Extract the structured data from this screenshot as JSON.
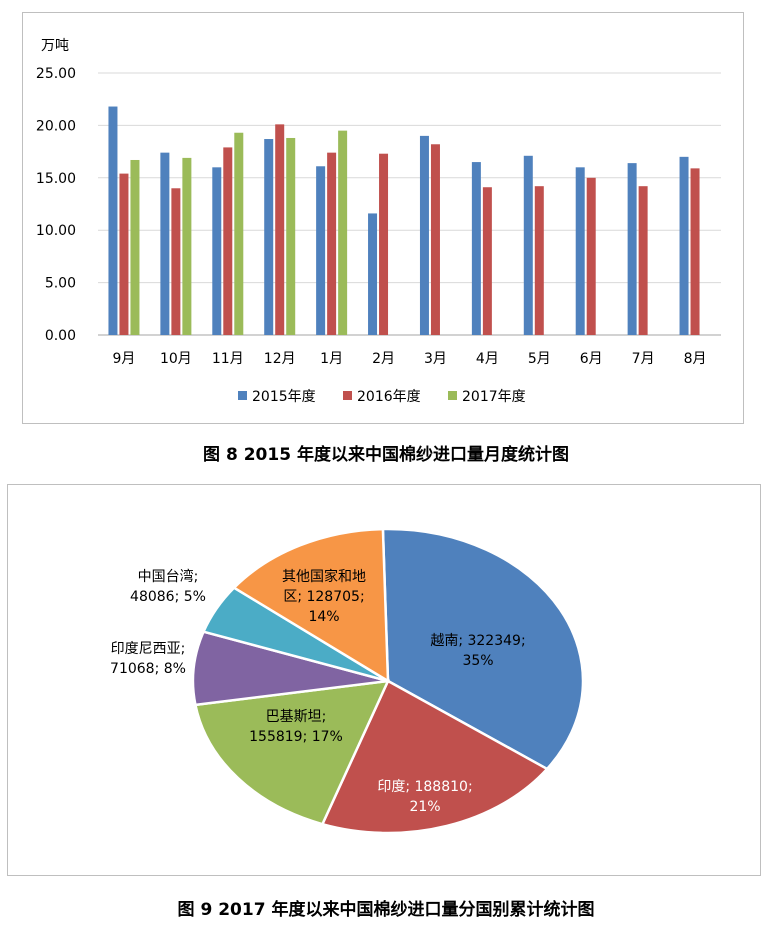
{
  "chart_data": [
    {
      "type": "bar",
      "title": "图 8 2015 年度以来中国棉纱进口量月度统计图",
      "ylabel": "万吨",
      "xlabel": "",
      "ylim": [
        0,
        25
      ],
      "yticks": [
        "0.00",
        "5.00",
        "10.00",
        "15.00",
        "20.00",
        "25.00"
      ],
      "grid": true,
      "legend": "bottom",
      "categories": [
        "9月",
        "10月",
        "11月",
        "12月",
        "1月",
        "2月",
        "3月",
        "4月",
        "5月",
        "6月",
        "7月",
        "8月"
      ],
      "series": [
        {
          "name": "2015年度",
          "color": "#4f81bd",
          "values": [
            21.8,
            17.4,
            16.0,
            18.7,
            16.1,
            11.6,
            19.0,
            16.5,
            17.1,
            16.0,
            16.4,
            17.0
          ]
        },
        {
          "name": "2016年度",
          "color": "#c0504d",
          "values": [
            15.4,
            14.0,
            17.9,
            20.1,
            17.4,
            17.3,
            18.2,
            14.1,
            14.2,
            15.0,
            14.2,
            15.9
          ]
        },
        {
          "name": "2017年度",
          "color": "#9bbb59",
          "values": [
            16.7,
            16.9,
            19.3,
            18.8,
            19.5,
            null,
            null,
            null,
            null,
            null,
            null,
            null
          ]
        }
      ]
    },
    {
      "type": "pie",
      "title": "图 9 2017 年度以来中国棉纱进口量分国别累计统计图",
      "slices": [
        {
          "name": "越南",
          "value": 322349,
          "percent": "35%",
          "color": "#4f81bd",
          "label_lines": [
            "越南; 322349;",
            "35%"
          ],
          "label_color": "#000000"
        },
        {
          "name": "印度",
          "value": 188810,
          "percent": "21%",
          "color": "#c0504d",
          "label_lines": [
            "印度; 188810;",
            "21%"
          ],
          "label_color": "#ffffff"
        },
        {
          "name": "巴基斯坦",
          "value": 155819,
          "percent": "17%",
          "color": "#9bbb59",
          "label_lines": [
            "巴基斯坦;",
            "155819; 17%"
          ],
          "label_color": "#000000"
        },
        {
          "name": "印度尼西亚",
          "value": 71068,
          "percent": "8%",
          "color": "#8064a2",
          "label_lines": [
            "印度尼西亚;",
            "71068; 8%"
          ],
          "label_color": "#000000"
        },
        {
          "name": "中国台湾",
          "value": 48086,
          "percent": "5%",
          "color": "#4bacc6",
          "label_lines": [
            "中国台湾;",
            "48086; 5%"
          ],
          "label_color": "#000000"
        },
        {
          "name": "其他国家和地区",
          "value": 128705,
          "percent": "14%",
          "color": "#f79646",
          "label_lines": [
            "其他国家和地",
            "区; 128705;",
            "14%"
          ],
          "label_color": "#000000"
        }
      ]
    }
  ],
  "captions": {
    "chart1": "图 8 2015 年度以来中国棉纱进口量月度统计图",
    "chart2": "图 9 2017 年度以来中国棉纱进口量分国别累计统计图"
  }
}
